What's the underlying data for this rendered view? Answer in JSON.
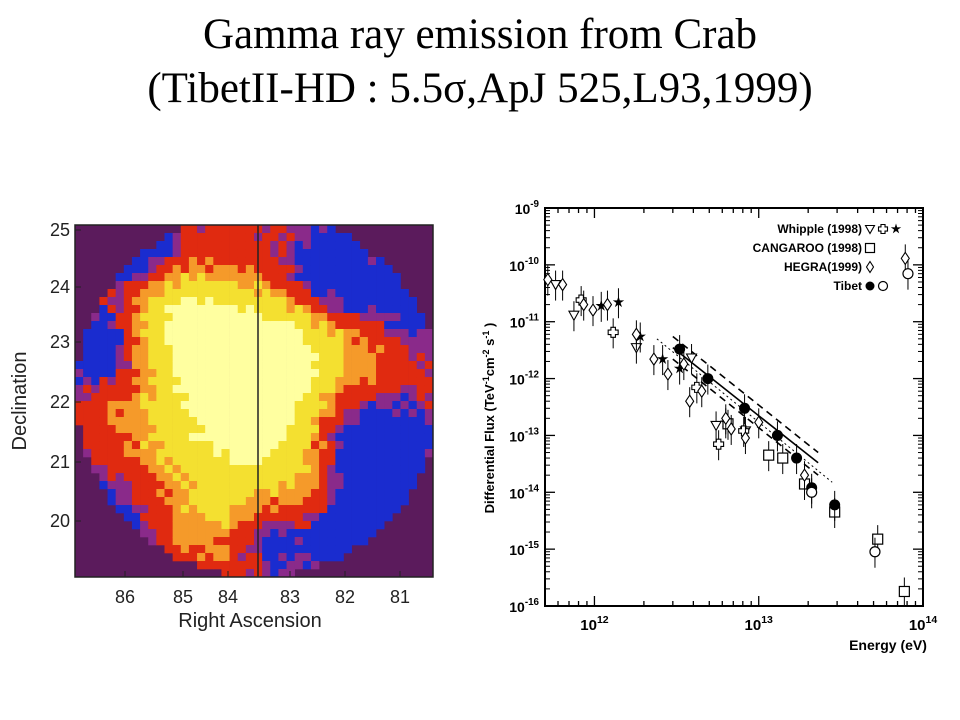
{
  "slide": {
    "title_line1": "Gamma ray emission from Crab",
    "title_line2": "(TibetII-HD : 5.5σ,ApJ 525,L93,1999)"
  },
  "skymap": {
    "xlabel": "Right Ascension",
    "ylabel": "Declination",
    "x_ticks": [
      "86",
      "85",
      "84",
      "83",
      "82",
      "81"
    ],
    "y_ticks": [
      "25",
      "24",
      "23",
      "22",
      "21",
      "20"
    ],
    "colors": {
      "background": "#5b1b5c",
      "low": "#1a2ccf",
      "mid": "#e02a10",
      "high": "#f4e030",
      "peak": "#ffffa0"
    }
  },
  "chart_data": {
    "type": "scatter",
    "xlabel": "Energy (eV)",
    "ylabel": "Differential Flux (TeV-1cm-2s-1)",
    "xscale": "log",
    "yscale": "log",
    "xlim": [
      500000000000.0,
      100000000000000.0
    ],
    "ylim": [
      1e-16,
      1e-09
    ],
    "x_ticks": [
      "10^12",
      "10^13",
      "10^14"
    ],
    "y_ticks": [
      "10^-9",
      "10^-10",
      "10^-11",
      "10^-12",
      "10^-13",
      "10^-14",
      "10^-15",
      "10^-16"
    ],
    "legend": {
      "placement": "top-right",
      "entries": [
        "Whipple (1998)",
        "CANGAROO (1998)",
        "HEGRA(1999)",
        "Tibet"
      ]
    },
    "series": [
      {
        "name": "Whipple (1998)",
        "marker": "triangle-down",
        "points": [
          [
            580000000000.0,
            4.5e-11
          ],
          [
            750000000000.0,
            1.3e-11
          ],
          [
            1800000000000.0,
            3.5e-12
          ],
          [
            3900000000000.0,
            2.3e-12
          ],
          [
            5500000000000.0,
            1.5e-13
          ],
          [
            8300000000000.0,
            1.2e-13
          ]
        ]
      },
      {
        "name": "Whipple (1998)",
        "marker": "cross",
        "points": [
          [
            830000000000.0,
            2.4e-11
          ],
          [
            1300000000000.0,
            6.5e-12
          ],
          [
            4200000000000.0,
            7e-13
          ],
          [
            5700000000000.0,
            7e-14
          ],
          [
            8100000000000.0,
            1.2e-13
          ]
        ]
      },
      {
        "name": "Whipple (1998)",
        "marker": "star",
        "points": [
          [
            1100000000000.0,
            1.9e-11
          ],
          [
            1400000000000.0,
            2.2e-11
          ],
          [
            1900000000000.0,
            5.5e-12
          ],
          [
            2600000000000.0,
            2.2e-12
          ],
          [
            3300000000000.0,
            1.5e-12
          ],
          [
            6300000000000.0,
            1.7e-13
          ]
        ]
      },
      {
        "name": "CANGAROO (1998)",
        "marker": "square",
        "points": [
          [
            6500000000000.0,
            1.6e-13
          ],
          [
            11500000000000.0,
            4.5e-14
          ],
          [
            14000000000000.0,
            4e-14
          ],
          [
            19000000000000.0,
            1.4e-14
          ],
          [
            29000000000000.0,
            4.5e-15
          ],
          [
            53000000000000.0,
            1.5e-15
          ],
          [
            77000000000000.0,
            1.8e-16
          ]
        ]
      },
      {
        "name": "HEGRA(1999)",
        "marker": "diamond",
        "points": [
          [
            520000000000.0,
            5.5e-11
          ],
          [
            640000000000.0,
            4.5e-11
          ],
          [
            860000000000.0,
            2e-11
          ],
          [
            980000000000.0,
            1.6e-11
          ],
          [
            1200000000000.0,
            2e-11
          ],
          [
            1800000000000.0,
            6e-12
          ],
          [
            2300000000000.0,
            2.2e-12
          ],
          [
            2800000000000.0,
            1.2e-12
          ],
          [
            3500000000000.0,
            1.8e-12
          ],
          [
            3800000000000.0,
            4e-13
          ],
          [
            4500000000000.0,
            6e-13
          ],
          [
            6300000000000.0,
            2e-13
          ],
          [
            6800000000000.0,
            1.3e-13
          ],
          [
            8300000000000.0,
            9e-14
          ],
          [
            10000000000000.0,
            1.7e-13
          ],
          [
            19000000000000.0,
            2e-14
          ],
          [
            78000000000000.0,
            1.3e-10
          ]
        ]
      },
      {
        "name": "Tibet",
        "marker": "circle-filled",
        "points": [
          [
            3300000000000.0,
            3.3e-12
          ],
          [
            4900000000000.0,
            1e-12
          ],
          [
            8200000000000.0,
            3e-13
          ],
          [
            13000000000000.0,
            1e-13
          ],
          [
            17000000000000.0,
            4e-14
          ],
          [
            21000000000000.0,
            1.2e-14
          ],
          [
            29000000000000.0,
            6e-15
          ]
        ]
      },
      {
        "name": "Tibet",
        "marker": "circle-open",
        "points": [
          [
            21000000000000.0,
            1e-14
          ],
          [
            51000000000000.0,
            9e-16
          ],
          [
            81000000000000.0,
            7e-11
          ]
        ]
      }
    ],
    "fit_lines": [
      {
        "style": "solid",
        "from": [
          3000000000000.0,
          3.5e-12
        ],
        "to": [
          23000000000000.0,
          3.3e-14
        ]
      },
      {
        "style": "dashed",
        "from": [
          3000000000000.0,
          5.5e-12
        ],
        "to": [
          23000000000000.0,
          5e-14
        ]
      },
      {
        "style": "dashed",
        "from": [
          3000000000000.0,
          2.2e-12
        ],
        "to": [
          23000000000000.0,
          2e-14
        ]
      },
      {
        "style": "dotted",
        "from": [
          2400000000000.0,
          5e-12
        ],
        "to": [
          28000000000000.0,
          1.5e-14
        ]
      }
    ]
  }
}
